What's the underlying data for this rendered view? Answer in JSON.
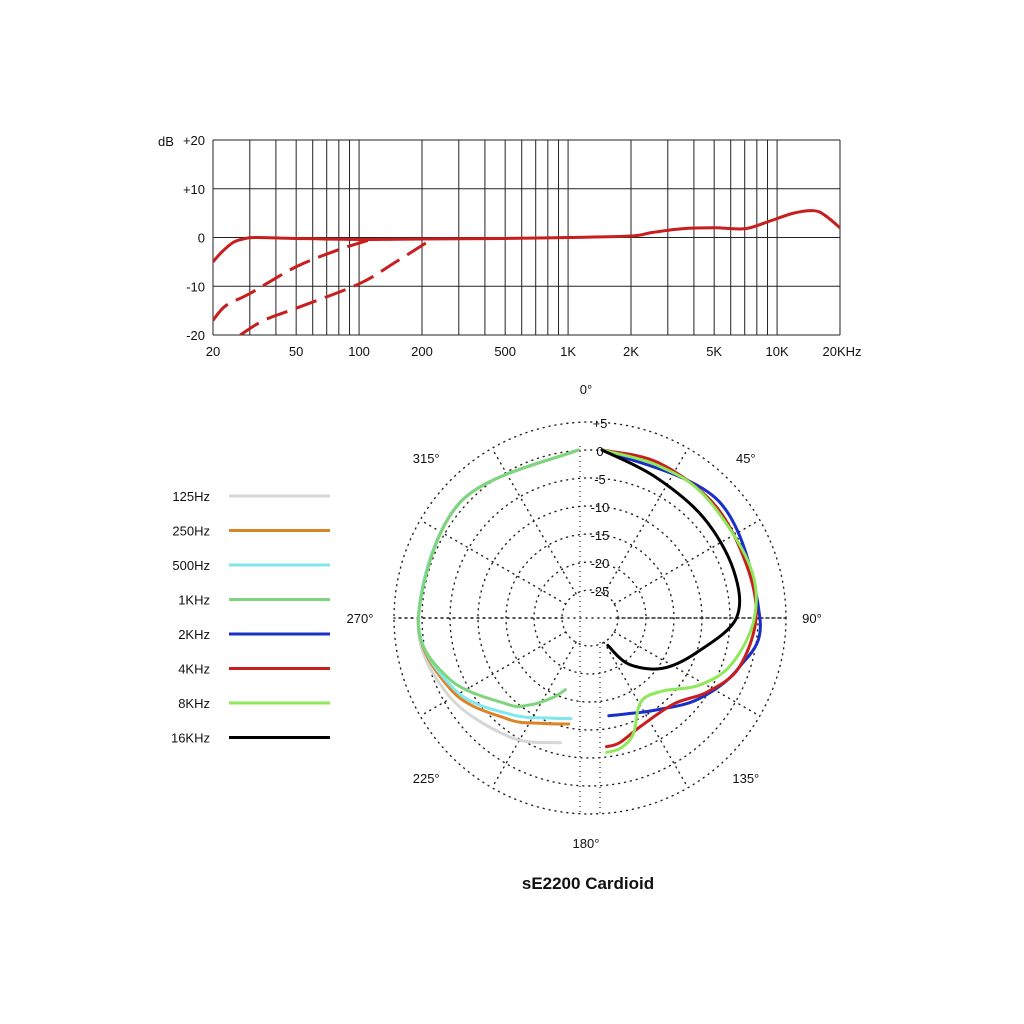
{
  "chart_data": [
    {
      "type": "line",
      "ylabel": "dB",
      "x_scale": "log",
      "xlim": [
        20,
        20000
      ],
      "ylim": [
        -20,
        20
      ],
      "y_ticks": [
        "+20",
        "+10",
        "0",
        "-10",
        "-20"
      ],
      "x_ticks": [
        {
          "value": 20,
          "label": "20"
        },
        {
          "value": 50,
          "label": "50"
        },
        {
          "value": 100,
          "label": "100"
        },
        {
          "value": 200,
          "label": "200"
        },
        {
          "value": 500,
          "label": "500"
        },
        {
          "value": 1000,
          "label": "1K"
        },
        {
          "value": 2000,
          "label": "2K"
        },
        {
          "value": 5000,
          "label": "5K"
        },
        {
          "value": 10000,
          "label": "10K"
        },
        {
          "value": 20000,
          "label": "20KHz"
        }
      ],
      "grid": true,
      "series": [
        {
          "style": "solid",
          "color": "#c81e1e",
          "points": [
            [
              20,
              -5
            ],
            [
              22,
              -3
            ],
            [
              25,
              -1
            ],
            [
              28,
              -0.3
            ],
            [
              32,
              0
            ],
            [
              50,
              -0.2
            ],
            [
              100,
              -0.4
            ],
            [
              200,
              -0.3
            ],
            [
              500,
              -0.2
            ],
            [
              1000,
              0
            ],
            [
              2000,
              0.3
            ],
            [
              2500,
              1
            ],
            [
              3500,
              1.8
            ],
            [
              5000,
              2
            ],
            [
              7000,
              1.8
            ],
            [
              9000,
              3.2
            ],
            [
              12000,
              5
            ],
            [
              15000,
              5.5
            ],
            [
              17000,
              4.5
            ],
            [
              20000,
              2
            ]
          ]
        },
        {
          "style": "dashed",
          "color": "#c81e1e",
          "points": [
            [
              20,
              -17
            ],
            [
              23,
              -14
            ],
            [
              30,
              -11.5
            ],
            [
              50,
              -6
            ],
            [
              80,
              -2.5
            ],
            [
              110,
              -0.6
            ]
          ]
        },
        {
          "style": "dashed",
          "color": "#c81e1e",
          "points": [
            [
              27,
              -20
            ],
            [
              35,
              -17
            ],
            [
              50,
              -14.5
            ],
            [
              100,
              -9.5
            ],
            [
              150,
              -5
            ],
            [
              220,
              -0.5
            ]
          ]
        }
      ]
    },
    {
      "type": "polar",
      "title": "sE2200  Cardioid",
      "rlim": [
        -30,
        5
      ],
      "r_ticks": [
        "+5",
        "0",
        "-5",
        "-10",
        "-15",
        "-20",
        "-25"
      ],
      "angle_ticks": [
        {
          "deg": 0,
          "label": "0°"
        },
        {
          "deg": 45,
          "label": "45°"
        },
        {
          "deg": 90,
          "label": "90°"
        },
        {
          "deg": 135,
          "label": "135°"
        },
        {
          "deg": 180,
          "label": "180°"
        },
        {
          "deg": 225,
          "label": "225°"
        },
        {
          "deg": 270,
          "label": "270°"
        },
        {
          "deg": 315,
          "label": "315°"
        }
      ],
      "legend_position": "left",
      "series": [
        {
          "name": "125Hz",
          "color": "#d6d6d6",
          "side": "left",
          "points": [
            [
              0,
              0
            ],
            [
              45,
              -0.5
            ],
            [
              90,
              -1.5
            ],
            [
              120,
              -3
            ],
            [
              150,
              -5.5
            ],
            [
              172,
              -7.5
            ]
          ]
        },
        {
          "name": "250Hz",
          "color": "#d98426",
          "side": "left",
          "points": [
            [
              0,
              0
            ],
            [
              45,
              -0.5
            ],
            [
              90,
              -1.5
            ],
            [
              120,
              -4
            ],
            [
              145,
              -8
            ],
            [
              160,
              -10
            ],
            [
              175,
              -11
            ]
          ]
        },
        {
          "name": "500Hz",
          "color": "#7fe8ec",
          "side": "left",
          "points": [
            [
              0,
              0
            ],
            [
              45,
              -0.5
            ],
            [
              90,
              -1.5
            ],
            [
              120,
              -4.5
            ],
            [
              145,
              -9
            ],
            [
              165,
              -11.5
            ],
            [
              176,
              -12
            ]
          ]
        },
        {
          "name": "1KHz",
          "color": "#7ed57e",
          "side": "left",
          "points": [
            [
              0,
              0
            ],
            [
              45,
              -0.5
            ],
            [
              90,
              -1.5
            ],
            [
              115,
              -4.5
            ],
            [
              140,
              -10
            ],
            [
              150,
              -12
            ],
            [
              162,
              -15
            ],
            [
              170,
              -17
            ]
          ]
        },
        {
          "name": "2KHz",
          "color": "#1a2fc8",
          "side": "right",
          "points": [
            [
              0,
              0
            ],
            [
              45,
              -0.5
            ],
            [
              90,
              -1.8
            ],
            [
              110,
              -4
            ],
            [
              130,
              -7.5
            ],
            [
              150,
              -11
            ],
            [
              165,
              -12.3
            ],
            [
              176,
              -12.5
            ]
          ]
        },
        {
          "name": "4KHz",
          "color": "#c81e1e",
          "side": "right",
          "points": [
            [
              0,
              0
            ],
            [
              20,
              -0.5
            ],
            [
              45,
              -1.5
            ],
            [
              70,
              -2.5
            ],
            [
              90,
              -2.5
            ],
            [
              110,
              -4
            ],
            [
              125,
              -7
            ],
            [
              140,
              -10
            ],
            [
              160,
              -9.5
            ],
            [
              172,
              -7.5
            ],
            [
              178,
              -7
            ]
          ]
        },
        {
          "name": "8KHz",
          "color": "#8ee85a",
          "side": "right",
          "points": [
            [
              0,
              0
            ],
            [
              20,
              -1
            ],
            [
              40,
              -1.5
            ],
            [
              70,
              -2
            ],
            [
              90,
              -2.8
            ],
            [
              110,
              -5.5
            ],
            [
              125,
              -9
            ],
            [
              140,
              -13
            ],
            [
              155,
              -13.5
            ],
            [
              165,
              -8.5
            ],
            [
              172,
              -6.5
            ],
            [
              178,
              -6
            ]
          ]
        },
        {
          "name": "16KHz",
          "color": "#000000",
          "side": "right",
          "points": [
            [
              0,
              0
            ],
            [
              20,
              -3
            ],
            [
              45,
              -4.5
            ],
            [
              70,
              -5
            ],
            [
              90,
              -6
            ],
            [
              110,
              -12
            ],
            [
              130,
              -16
            ],
            [
              150,
              -20.5
            ],
            [
              168,
              -25
            ]
          ]
        }
      ]
    }
  ]
}
